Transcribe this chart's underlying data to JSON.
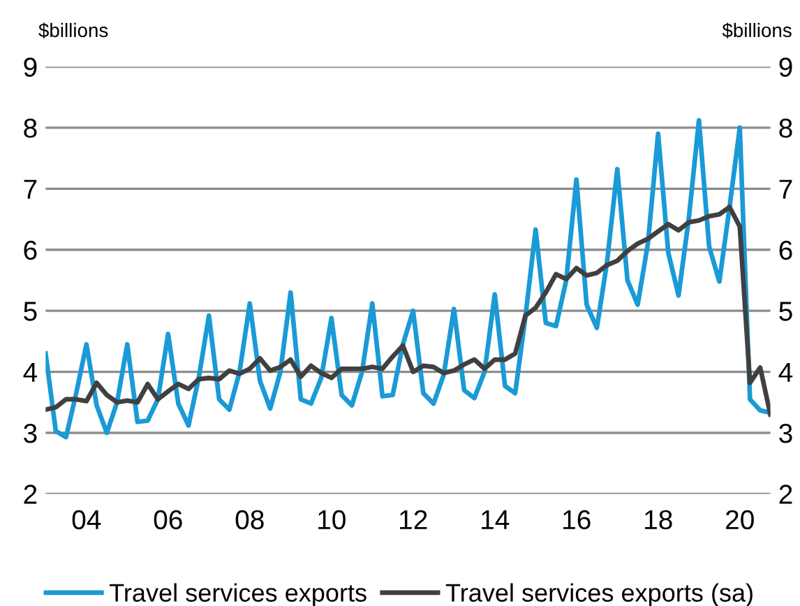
{
  "chart_data": {
    "type": "line",
    "ylabel": "$billions",
    "y2label": "$billions",
    "x": [
      2003.0,
      2003.25,
      2003.5,
      2003.75,
      2004.0,
      2004.25,
      2004.5,
      2004.75,
      2005.0,
      2005.25,
      2005.5,
      2005.75,
      2006.0,
      2006.25,
      2006.5,
      2006.75,
      2007.0,
      2007.25,
      2007.5,
      2007.75,
      2008.0,
      2008.25,
      2008.5,
      2008.75,
      2009.0,
      2009.25,
      2009.5,
      2009.75,
      2010.0,
      2010.25,
      2010.5,
      2010.75,
      2011.0,
      2011.25,
      2011.5,
      2011.75,
      2012.0,
      2012.25,
      2012.5,
      2012.75,
      2013.0,
      2013.25,
      2013.5,
      2013.75,
      2014.0,
      2014.25,
      2014.5,
      2014.75,
      2015.0,
      2015.25,
      2015.5,
      2015.75,
      2016.0,
      2016.25,
      2016.5,
      2016.75,
      2017.0,
      2017.25,
      2017.5,
      2017.75,
      2018.0,
      2018.25,
      2018.5,
      2018.75,
      2019.0,
      2019.25,
      2019.5,
      2019.75,
      2020.0,
      2020.25,
      2020.5,
      2020.75
    ],
    "series": [
      {
        "name": "Travel services exports",
        "color": "#1a9ad6",
        "values": [
          4.3,
          3.03,
          2.93,
          3.65,
          4.45,
          3.45,
          3.0,
          3.5,
          4.45,
          3.18,
          3.2,
          3.55,
          4.62,
          3.48,
          3.12,
          3.9,
          4.92,
          3.55,
          3.38,
          4.0,
          5.12,
          3.85,
          3.4,
          4.0,
          5.3,
          3.55,
          3.48,
          3.9,
          4.88,
          3.62,
          3.45,
          4.0,
          5.12,
          3.6,
          3.62,
          4.45,
          5.0,
          3.65,
          3.48,
          3.95,
          5.03,
          3.7,
          3.57,
          4.0,
          5.27,
          3.77,
          3.65,
          4.9,
          6.33,
          4.8,
          4.75,
          5.5,
          7.15,
          5.1,
          4.72,
          5.8,
          7.32,
          5.5,
          5.1,
          6.1,
          7.9,
          5.95,
          5.25,
          6.5,
          8.12,
          6.05,
          5.48,
          6.7,
          8.0,
          3.55,
          3.37,
          3.33
        ]
      },
      {
        "name": "Travel services exports (sa)",
        "color": "#404040",
        "values": [
          3.38,
          3.42,
          3.55,
          3.55,
          3.52,
          3.82,
          3.62,
          3.5,
          3.53,
          3.5,
          3.8,
          3.55,
          3.68,
          3.8,
          3.72,
          3.88,
          3.9,
          3.88,
          4.02,
          3.97,
          4.05,
          4.22,
          4.02,
          4.08,
          4.2,
          3.92,
          4.1,
          3.98,
          3.9,
          4.05,
          4.05,
          4.05,
          4.08,
          4.05,
          4.25,
          4.43,
          4.0,
          4.1,
          4.08,
          3.98,
          4.02,
          4.12,
          4.2,
          4.05,
          4.2,
          4.2,
          4.3,
          4.92,
          5.05,
          5.3,
          5.6,
          5.52,
          5.7,
          5.58,
          5.62,
          5.75,
          5.82,
          5.98,
          6.1,
          6.18,
          6.3,
          6.42,
          6.32,
          6.45,
          6.48,
          6.55,
          6.58,
          6.7,
          6.38,
          3.82,
          4.07,
          3.3
        ]
      }
    ],
    "xlim": [
      2003.0,
      2020.75
    ],
    "xticks": [
      {
        "value": 2004,
        "label": "04"
      },
      {
        "value": 2006,
        "label": "06"
      },
      {
        "value": 2008,
        "label": "08"
      },
      {
        "value": 2010,
        "label": "10"
      },
      {
        "value": 2012,
        "label": "12"
      },
      {
        "value": 2014,
        "label": "14"
      },
      {
        "value": 2016,
        "label": "16"
      },
      {
        "value": 2018,
        "label": "18"
      },
      {
        "value": 2020,
        "label": "20"
      }
    ],
    "ylim": [
      2,
      9
    ],
    "yticks": [
      2,
      3,
      4,
      5,
      6,
      7,
      8,
      9
    ],
    "y2lim": [
      2,
      9
    ],
    "y2ticks": [
      2,
      3,
      4,
      5,
      6,
      7,
      8,
      9
    ],
    "grid": "y",
    "legend": "bottom",
    "marker": "none",
    "line_style": "solid"
  }
}
